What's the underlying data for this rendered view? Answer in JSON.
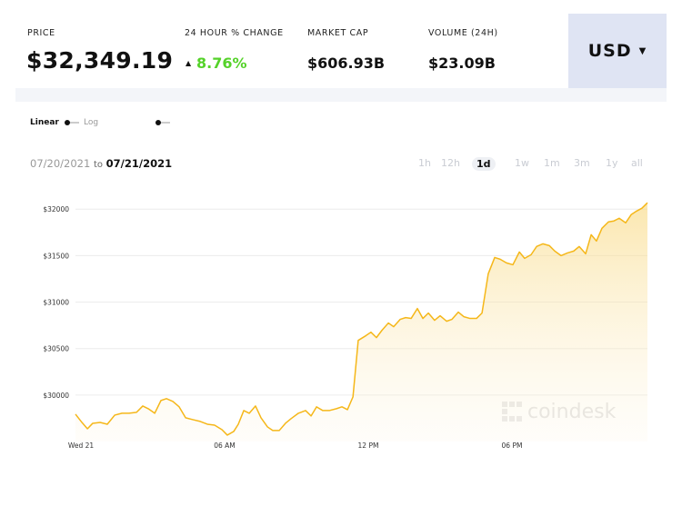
{
  "header": {
    "price_label": "PRICE",
    "price": "$32,349.19",
    "change_label": "24 HOUR % CHANGE",
    "change": "8.76%",
    "market_cap_label": "MARKET CAP",
    "market_cap": "$606.93B",
    "volume_label": "VOLUME (24H)",
    "volume": "$23.09B",
    "currency": "USD"
  },
  "controls": {
    "scale_linear": "Linear",
    "scale_log": "Log",
    "date_from": "07/20/2021",
    "date_sep": "to",
    "date_to": "07/21/2021",
    "ranges": [
      "1h",
      "12h",
      "1d",
      "1w",
      "1m",
      "3m",
      "1y",
      "all"
    ],
    "selected_range": "1d"
  },
  "chart_data": {
    "type": "area",
    "watermark": "coindesk",
    "color": "#f5b719",
    "grid": true,
    "x": [
      -0.23,
      0.04,
      0.27,
      0.49,
      0.8,
      1.1,
      1.41,
      1.71,
      2.01,
      2.32,
      2.58,
      2.81,
      3.08,
      3.34,
      3.57,
      3.84,
      4.1,
      4.37,
      4.67,
      4.98,
      5.28,
      5.58,
      5.89,
      6.11,
      6.38,
      6.57,
      6.8,
      7.03,
      7.29,
      7.52,
      7.79,
      8.01,
      8.28,
      8.54,
      8.77,
      9.08,
      9.38,
      9.61,
      9.84,
      10.1,
      10.37,
      10.67,
      10.9,
      11.13,
      11.36,
      11.58,
      11.89,
      12.11,
      12.34,
      12.57,
      12.84,
      13.06,
      13.33,
      13.56,
      13.79,
      14.05,
      14.28,
      14.51,
      14.77,
      15.0,
      15.27,
      15.49,
      15.76,
      15.99,
      16.25,
      16.52,
      16.75,
      17.01,
      17.28,
      17.51,
      17.77,
      18.04,
      18.31,
      18.53,
      18.8,
      19.03,
      19.29,
      19.56,
      19.79,
      20.05,
      20.32,
      20.58,
      20.81,
      21.08,
      21.31,
      21.53,
      21.76,
      22.03,
      22.26,
      22.48,
      22.75,
      22.98,
      23.21,
      23.43,
      23.66
    ],
    "values": [
      29794,
      29705,
      29637,
      29696,
      29705,
      29686,
      29784,
      29804,
      29804,
      29814,
      29882,
      29853,
      29804,
      29941,
      29961,
      29931,
      29873,
      29755,
      29735,
      29716,
      29686,
      29676,
      29627,
      29569,
      29608,
      29686,
      29833,
      29804,
      29882,
      29755,
      29657,
      29618,
      29618,
      29696,
      29745,
      29804,
      29833,
      29775,
      29873,
      29833,
      29833,
      29853,
      29873,
      29843,
      29980,
      30588,
      30637,
      30676,
      30618,
      30696,
      30775,
      30735,
      30814,
      30833,
      30824,
      30931,
      30824,
      30882,
      30804,
      30853,
      30794,
      30814,
      30892,
      30843,
      30824,
      30824,
      30882,
      31304,
      31480,
      31461,
      31422,
      31402,
      31539,
      31471,
      31510,
      31598,
      31627,
      31608,
      31549,
      31500,
      31529,
      31549,
      31598,
      31520,
      31725,
      31657,
      31794,
      31863,
      31873,
      31902,
      31853,
      31941,
      31980,
      32010,
      32069
    ],
    "xlim": [
      -0.23,
      23.66
    ],
    "xticks": [
      {
        "value": 0,
        "label": "Wed 21"
      },
      {
        "value": 6,
        "label": "06 AM"
      },
      {
        "value": 12,
        "label": "12 PM"
      },
      {
        "value": 18,
        "label": "06 PM"
      }
    ],
    "ylim": [
      29500,
      32100
    ],
    "yticks": [
      {
        "value": 30000,
        "label": "$30000"
      },
      {
        "value": 30500,
        "label": "$30500"
      },
      {
        "value": 31000,
        "label": "$31000"
      },
      {
        "value": 31500,
        "label": "$31500"
      },
      {
        "value": 32000,
        "label": "$32000"
      }
    ]
  }
}
